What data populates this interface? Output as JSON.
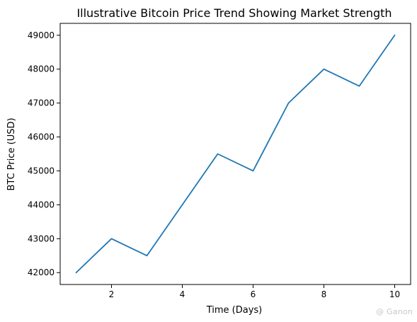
{
  "chart_data": {
    "type": "line",
    "title": "Illustrative Bitcoin Price Trend Showing Market Strength",
    "xlabel": "Time (Days)",
    "ylabel": "BTC Price (USD)",
    "x": [
      1,
      2,
      3,
      4,
      5,
      6,
      7,
      8,
      9,
      10
    ],
    "series": [
      {
        "values": [
          42000,
          43000,
          42500,
          44000,
          45500,
          45000,
          47000,
          48000,
          47500,
          49000
        ],
        "color": "#1f77b4"
      }
    ],
    "xlim": [
      0.55,
      10.45
    ],
    "ylim": [
      41650,
      49350
    ],
    "xticks": [
      2,
      4,
      6,
      8,
      10
    ],
    "yticks": [
      42000,
      43000,
      44000,
      45000,
      46000,
      47000,
      48000,
      49000
    ],
    "grid": false,
    "legend": "none"
  },
  "watermark": {
    "text": "@ Ganon"
  }
}
